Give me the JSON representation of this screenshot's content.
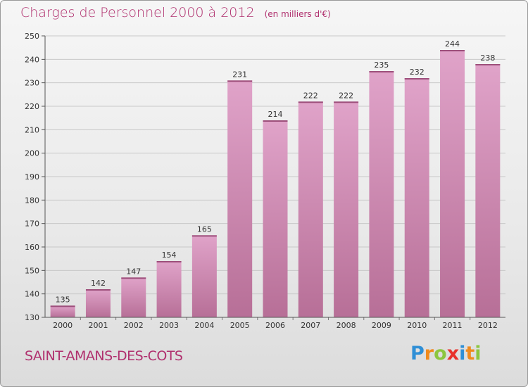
{
  "title": "Charges de Personnel 2000 à 2012",
  "subtitle": "(en milliers d'€)",
  "city": "SAINT-AMANS-DES-COTS",
  "brand": {
    "letters": [
      "P",
      "r",
      "o",
      "x",
      "i",
      "t",
      "i"
    ],
    "colors": [
      "#2f8fd6",
      "#f08a1c",
      "#8cc63f",
      "#e8322b",
      "#2f8fd6",
      "#f08a1c",
      "#8cc63f"
    ]
  },
  "colors": {
    "bar_light": "#e0a3c9",
    "bar_dark": "#b76f97",
    "accent": "#b0306e",
    "grid": "#c8c8c8"
  },
  "chart_data": {
    "type": "bar",
    "categories": [
      "2000",
      "2001",
      "2002",
      "2003",
      "2004",
      "2005",
      "2006",
      "2007",
      "2008",
      "2009",
      "2010",
      "2011",
      "2012"
    ],
    "values": [
      135,
      142,
      147,
      154,
      165,
      231,
      214,
      222,
      222,
      235,
      232,
      244,
      238
    ],
    "ylim": [
      130,
      250
    ],
    "yticks": [
      130,
      140,
      150,
      160,
      170,
      180,
      190,
      200,
      210,
      220,
      230,
      240,
      250
    ],
    "grid": true,
    "data_labels": true
  }
}
